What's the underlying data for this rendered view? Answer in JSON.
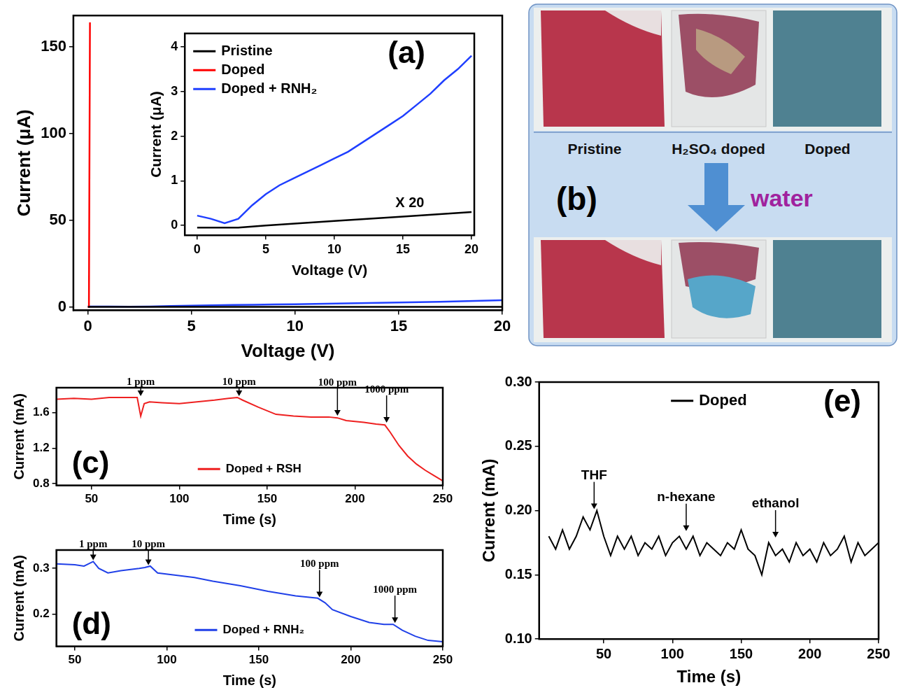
{
  "chart_data": [
    {
      "type": "line",
      "x_label": "Voltage (V)",
      "y_label": "Current (μA)",
      "xlim": [
        -0.7,
        20
      ],
      "ylim": [
        -2,
        168
      ],
      "xticks": [
        0,
        5,
        10,
        15,
        20
      ],
      "yticks": [
        0,
        50,
        100,
        150
      ],
      "grid": false,
      "series": [
        {
          "name": "Pristine",
          "color": "#000000",
          "x": [
            0,
            3,
            5,
            10,
            15,
            20
          ],
          "values": [
            -0.0025,
            -0.0025,
            0,
            0.005,
            0.01,
            0.015
          ]
        },
        {
          "name": "Doped",
          "color": "#ff0000",
          "x": [
            0,
            0.05,
            0.1
          ],
          "values": [
            0,
            0,
            164
          ]
        },
        {
          "name": "Doped + RNH₂",
          "color": "#1f3fff",
          "x": [
            0,
            1,
            2,
            3,
            4,
            5,
            6,
            7,
            8,
            9,
            10,
            11,
            12,
            13,
            14,
            15,
            16,
            17,
            18,
            19,
            20
          ],
          "values": [
            0.22,
            0.15,
            0.05,
            0.15,
            0.45,
            0.7,
            0.9,
            1.05,
            1.2,
            1.35,
            1.5,
            1.65,
            1.85,
            2.05,
            2.25,
            2.45,
            2.7,
            2.95,
            3.25,
            3.5,
            3.8
          ]
        }
      ]
    },
    {
      "type": "line",
      "label": "(a)",
      "x_label": "Voltage (V)",
      "y_label": "Current (μA)",
      "xlim": [
        -0.9,
        20.2
      ],
      "ylim": [
        -0.22,
        4.3
      ],
      "xticks": [
        0,
        5,
        10,
        15,
        20
      ],
      "yticks": [
        0,
        1,
        2,
        3,
        4
      ],
      "grid": false,
      "legend": "upper left",
      "annotations": [
        {
          "text": "X 20",
          "x": 15.5,
          "y": 0.5
        }
      ],
      "series": [
        {
          "name": "Pristine",
          "color": "#000000",
          "x": [
            0,
            3,
            5,
            10,
            15,
            20
          ],
          "values": [
            -0.05,
            -0.05,
            0,
            0.1,
            0.2,
            0.3
          ]
        },
        {
          "name": "Doped",
          "color": "#ff0000",
          "x": [],
          "values": []
        },
        {
          "name": "Doped + RNH₂",
          "color": "#1f3fff",
          "x": [
            0,
            1,
            2,
            3,
            4,
            5,
            6,
            7,
            8,
            9,
            10,
            11,
            12,
            13,
            14,
            15,
            16,
            17,
            18,
            19,
            20
          ],
          "values": [
            0.22,
            0.15,
            0.05,
            0.15,
            0.45,
            0.7,
            0.9,
            1.05,
            1.2,
            1.35,
            1.5,
            1.65,
            1.85,
            2.05,
            2.25,
            2.45,
            2.7,
            2.95,
            3.25,
            3.5,
            3.8
          ]
        }
      ]
    },
    {
      "type": "line",
      "label": "(c)",
      "x_label": "Time (s)",
      "y_label": "Current (mA)",
      "xlim": [
        30,
        250
      ],
      "ylim": [
        0.78,
        1.88
      ],
      "xticks": [
        50,
        100,
        150,
        200,
        250
      ],
      "yticks": [
        0.8,
        1.2,
        1.6
      ],
      "grid": false,
      "legend": "lower center",
      "event_arrows": [
        {
          "text": "1 ppm",
          "x": 78,
          "y": 1.77
        },
        {
          "text": "10 ppm",
          "x": 134,
          "y": 1.77
        },
        {
          "text": "100 ppm",
          "x": 190,
          "y": 1.55
        },
        {
          "text": "1000 ppm",
          "x": 218,
          "y": 1.47
        }
      ],
      "series": [
        {
          "name": "Doped + RSH",
          "color": "#ee2020",
          "x": [
            30,
            40,
            50,
            60,
            70,
            76,
            78,
            80,
            83,
            90,
            100,
            110,
            120,
            128,
            133,
            136,
            145,
            155,
            165,
            175,
            185,
            190,
            195,
            205,
            212,
            217,
            220,
            225,
            230,
            235,
            240,
            245,
            250
          ],
          "values": [
            1.75,
            1.76,
            1.75,
            1.77,
            1.77,
            1.77,
            1.56,
            1.7,
            1.72,
            1.71,
            1.7,
            1.72,
            1.74,
            1.76,
            1.77,
            1.74,
            1.66,
            1.58,
            1.56,
            1.55,
            1.55,
            1.54,
            1.51,
            1.49,
            1.47,
            1.46,
            1.38,
            1.23,
            1.11,
            1.02,
            0.95,
            0.89,
            0.83
          ]
        }
      ]
    },
    {
      "type": "line",
      "label": "(d)",
      "x_label": "Time (s)",
      "y_label": "Current (mA)",
      "xlim": [
        40,
        250
      ],
      "ylim": [
        0.13,
        0.34
      ],
      "xticks": [
        50,
        100,
        150,
        200,
        250
      ],
      "yticks": [
        0.2,
        0.3
      ],
      "grid": false,
      "legend": "lower center",
      "event_arrows": [
        {
          "text": "1 ppm",
          "x": 60,
          "y": 0.315
        },
        {
          "text": "10 ppm",
          "x": 90,
          "y": 0.304
        },
        {
          "text": "100 ppm",
          "x": 183,
          "y": 0.234
        },
        {
          "text": "1000 ppm",
          "x": 224,
          "y": 0.178
        }
      ],
      "series": [
        {
          "name": "Doped + RNH₂",
          "color": "#2040e8",
          "x": [
            40,
            50,
            55,
            60,
            63,
            68,
            75,
            85,
            88,
            91,
            95,
            105,
            115,
            125,
            140,
            155,
            170,
            182,
            186,
            190,
            200,
            210,
            218,
            223,
            228,
            235,
            242,
            250
          ],
          "values": [
            0.31,
            0.308,
            0.305,
            0.315,
            0.3,
            0.29,
            0.295,
            0.3,
            0.302,
            0.305,
            0.29,
            0.285,
            0.28,
            0.272,
            0.262,
            0.25,
            0.24,
            0.235,
            0.225,
            0.21,
            0.195,
            0.182,
            0.178,
            0.178,
            0.165,
            0.152,
            0.143,
            0.14
          ]
        }
      ]
    },
    {
      "type": "line",
      "label": "(e)",
      "x_label": "Time (s)",
      "y_label": "Current (mA)",
      "xlim": [
        3,
        250
      ],
      "ylim": [
        0.1,
        0.3
      ],
      "xticks": [
        50,
        100,
        150,
        200,
        250
      ],
      "yticks": [
        {
          "value": 0.1,
          "label": "0.10"
        },
        {
          "value": 0.15,
          "label": "0.15"
        },
        {
          "value": 0.2,
          "label": "0.20"
        },
        {
          "value": 0.25,
          "label": "0.25"
        },
        {
          "value": 0.3,
          "label": "0.30"
        }
      ],
      "grid": false,
      "legend": "upper center",
      "event_arrows": [
        {
          "text": "THF",
          "x": 43,
          "y": 0.2
        },
        {
          "text": "n-hexane",
          "x": 110,
          "y": 0.183
        },
        {
          "text": "ethanol",
          "x": 175,
          "y": 0.178
        }
      ],
      "series": [
        {
          "name": "Doped",
          "color": "#000000",
          "x": [
            10,
            15,
            20,
            25,
            30,
            35,
            40,
            45,
            50,
            55,
            60,
            65,
            70,
            75,
            80,
            85,
            90,
            95,
            100,
            105,
            110,
            115,
            120,
            125,
            130,
            135,
            140,
            145,
            150,
            155,
            160,
            165,
            170,
            175,
            180,
            185,
            190,
            195,
            200,
            205,
            210,
            215,
            220,
            225,
            230,
            235,
            240,
            245,
            250
          ],
          "values": [
            0.18,
            0.17,
            0.185,
            0.17,
            0.18,
            0.195,
            0.185,
            0.2,
            0.18,
            0.165,
            0.18,
            0.17,
            0.18,
            0.165,
            0.175,
            0.17,
            0.18,
            0.165,
            0.175,
            0.18,
            0.17,
            0.18,
            0.165,
            0.175,
            0.17,
            0.165,
            0.175,
            0.17,
            0.185,
            0.17,
            0.165,
            0.15,
            0.175,
            0.165,
            0.17,
            0.16,
            0.175,
            0.165,
            0.17,
            0.16,
            0.175,
            0.165,
            0.17,
            0.18,
            0.16,
            0.175,
            0.165,
            0.17,
            0.175
          ]
        }
      ]
    }
  ],
  "photo": {
    "label": "(b)",
    "samples": [
      "Pristine",
      "H₂SO₄ doped",
      "Doped"
    ],
    "treatment": "water"
  }
}
